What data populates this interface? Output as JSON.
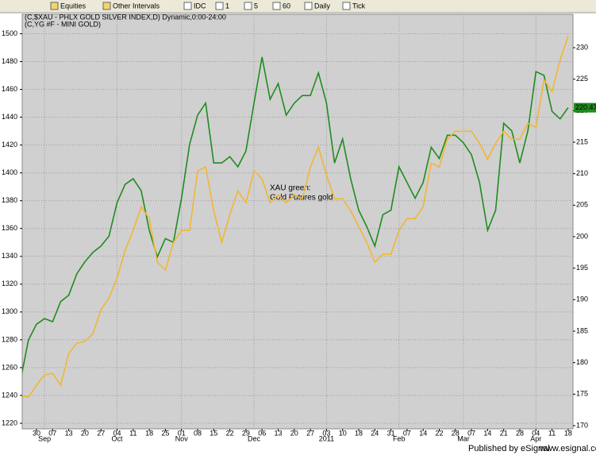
{
  "toolbar": {
    "items": [
      "Equities",
      "Other Intervals",
      "IDC",
      "1",
      "5",
      "60",
      "Daily",
      "Tick"
    ]
  },
  "chart_data": {
    "type": "line",
    "header": [
      "(C,$XAU - PHLX GOLD SILVER INDEX,D) Dynamic,0:00-24:00",
      "(C,YG #F - MINI GOLD)"
    ],
    "annotation": [
      "XAU green:",
      "Gold Futures gold"
    ],
    "categories": [
      null,
      null,
      "30",
      null,
      "07",
      null,
      "13",
      null,
      "20",
      null,
      "27",
      null,
      "04",
      null,
      "11",
      null,
      "18",
      null,
      "25",
      null,
      "01",
      null,
      "08",
      null,
      "15",
      null,
      "22",
      null,
      "29",
      null,
      "06",
      null,
      "13",
      null,
      "20",
      null,
      "27",
      null,
      "03",
      null,
      "10",
      null,
      "18",
      null,
      "24",
      null,
      "31",
      null,
      "07",
      null,
      "14",
      null,
      "22",
      null,
      "28",
      null,
      "07",
      null,
      "14",
      null,
      "21",
      null,
      "28",
      null,
      "04",
      null,
      "11",
      null,
      "18"
    ],
    "months": [
      {
        "category": 3,
        "label": "Sep"
      },
      {
        "category": 12,
        "label": "Oct"
      },
      {
        "category": 20,
        "label": "Nov"
      },
      {
        "category": 29,
        "label": "Dec"
      },
      {
        "category": 38,
        "label": "2011"
      },
      {
        "category": 47,
        "label": "Feb"
      },
      {
        "category": 55,
        "label": "Mar"
      },
      {
        "category": 64,
        "label": "Apr"
      }
    ],
    "series": [
      {
        "name": "XAU",
        "color": "#1e8c1e",
        "axis": "y2",
        "values": [
          177.1,
          183.6,
          186.1,
          187.0,
          186.5,
          189.7,
          190.7,
          194.1,
          196.0,
          197.5,
          198.5,
          200.1,
          205.4,
          208.3,
          209.2,
          207.3,
          201.0,
          196.8,
          199.7,
          199.1,
          206.1,
          214.6,
          219.3,
          221.2,
          211.7,
          211.7,
          212.7,
          211.1,
          213.6,
          221.2,
          228.5,
          221.8,
          224.3,
          219.3,
          221.2,
          222.4,
          222.4,
          226.0,
          221.2,
          211.7,
          215.5,
          209.2,
          204.2,
          201.6,
          198.5,
          203.5,
          204.2,
          211.1,
          208.6,
          206.1,
          208.6,
          214.2,
          212.4,
          216.1,
          216.1,
          214.9,
          213.0,
          208.6,
          201.0,
          204.2,
          218.0,
          216.8,
          211.7,
          216.8,
          226.2,
          225.6,
          219.9,
          218.7,
          220.47
        ]
      },
      {
        "name": "Gold Futures",
        "color": "#f2b632",
        "values": [
          1240.0,
          1238.8,
          1247.4,
          1254.8,
          1255.9,
          1247.4,
          1270.2,
          1277.6,
          1278.7,
          1284.4,
          1301.6,
          1310.1,
          1324.4,
          1344.3,
          1358.6,
          1375.7,
          1367.1,
          1335.8,
          1330.1,
          1350.0,
          1358.6,
          1358.6,
          1401.4,
          1404.2,
          1372.8,
          1350.0,
          1370.0,
          1387.1,
          1378.5,
          1401.4,
          1395.7,
          1378.5,
          1384.2,
          1378.5,
          1384.2,
          1381.4,
          1404.2,
          1418.5,
          1398.5,
          1381.4,
          1381.4,
          1372.8,
          1361.4,
          1350.0,
          1335.8,
          1341.5,
          1341.5,
          1358.6,
          1367.1,
          1367.1,
          1375.7,
          1407.1,
          1404.2,
          1424.2,
          1429.9,
          1429.9,
          1429.9,
          1421.3,
          1409.9,
          1421.3,
          1429.9,
          1424.2,
          1424.2,
          1435.6,
          1432.7,
          1466.9,
          1458.4,
          1481.2,
          1498.3
        ]
      }
    ],
    "ylim": [
      1216,
      1514
    ],
    "yticks": [
      1220,
      1240,
      1260,
      1280,
      1300,
      1320,
      1340,
      1360,
      1380,
      1400,
      1420,
      1440,
      1460,
      1480,
      1500
    ],
    "y2lim": [
      169.5,
      235.3
    ],
    "y2ticks": [
      170,
      175,
      180,
      185,
      190,
      195,
      200,
      205,
      210,
      215,
      220,
      225,
      230
    ],
    "y2_marker": 220.47,
    "grid": true
  },
  "footer": {
    "published": "Published by eSignal",
    "url": "www.esignal.com"
  }
}
